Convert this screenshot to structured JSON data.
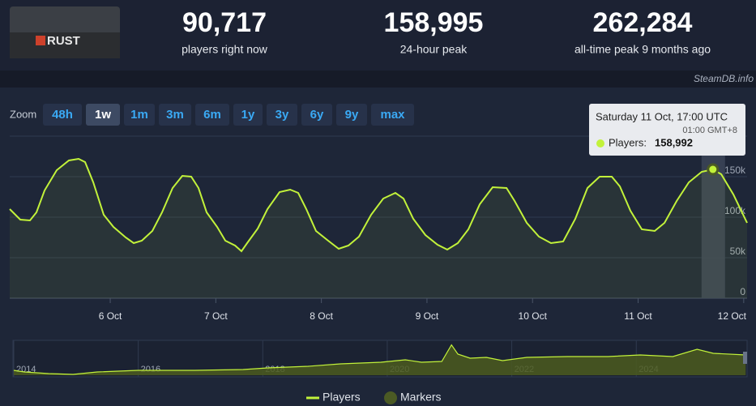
{
  "logo": "RUST",
  "stats": [
    {
      "value": "90,717",
      "label": "players right now"
    },
    {
      "value": "158,995",
      "label": "24-hour peak"
    },
    {
      "value": "262,284",
      "label": "all-time peak 9 months ago"
    }
  ],
  "credit": "SteamDB.info",
  "zoom": {
    "label": "Zoom",
    "options": [
      "48h",
      "1w",
      "1m",
      "3m",
      "6m",
      "1y",
      "3y",
      "6y",
      "9y",
      "max"
    ],
    "active": "1w"
  },
  "chart_data": [
    {
      "type": "line",
      "series": [
        {
          "name": "Players",
          "color": "#c2f23a",
          "x": [
            5.048,
            5.148,
            5.24,
            5.301,
            5.378,
            5.493,
            5.608,
            5.7,
            5.762,
            5.839,
            5.938,
            6.03,
            6.146,
            6.222,
            6.299,
            6.399,
            6.491,
            6.591,
            6.683,
            6.767,
            6.836,
            6.913,
            7.013,
            7.09,
            7.182,
            7.243,
            7.297,
            7.397,
            7.489,
            7.604,
            7.704,
            7.78,
            7.857,
            7.949,
            8.064,
            8.164,
            8.256,
            8.356,
            8.471,
            8.586,
            8.701,
            8.778,
            8.87,
            8.985,
            9.1,
            9.192,
            9.292,
            9.392,
            9.5,
            9.622,
            9.753,
            9.83,
            9.945,
            10.06,
            10.175,
            10.29,
            10.405,
            10.52,
            10.635,
            10.75,
            10.827,
            10.927,
            11.035,
            11.157,
            11.25,
            11.365,
            11.48,
            11.602,
            11.708,
            11.787,
            11.902,
            12.032
          ],
          "values": [
            110000,
            97000,
            96000,
            106000,
            133000,
            158000,
            170000,
            172000,
            168000,
            143000,
            103000,
            88000,
            75000,
            68000,
            71000,
            83000,
            106000,
            136000,
            151000,
            150000,
            136000,
            106000,
            88000,
            71000,
            65000,
            58000,
            68000,
            86000,
            110000,
            131000,
            134000,
            130000,
            110000,
            83000,
            71000,
            61000,
            65000,
            76000,
            103000,
            123000,
            130000,
            123000,
            98000,
            78000,
            66000,
            60000,
            68000,
            85000,
            116000,
            137000,
            136000,
            120000,
            93000,
            76000,
            68000,
            70000,
            98000,
            136000,
            150000,
            150000,
            138000,
            108000,
            85000,
            83000,
            93000,
            120000,
            143000,
            156000,
            158992,
            153000,
            128000,
            93000
          ]
        }
      ],
      "xlim": [
        5.048,
        12.032
      ],
      "xticks": [
        {
          "value": 6,
          "label": "6 Oct"
        },
        {
          "value": 7,
          "label": "7 Oct"
        },
        {
          "value": 8,
          "label": "8 Oct"
        },
        {
          "value": 9,
          "label": "9 Oct"
        },
        {
          "value": 10,
          "label": "10 Oct"
        },
        {
          "value": 11,
          "label": "11 Oct"
        },
        {
          "value": 12,
          "label": "12 Oct"
        }
      ],
      "ylim": [
        0,
        200000
      ],
      "yticks": [
        0,
        {
          "value": 50000,
          "label": "50k"
        },
        {
          "value": 100000,
          "label": "100k"
        },
        {
          "value": 150000,
          "label": "150k"
        }
      ],
      "grid": true,
      "tooltip": {
        "title": "Saturday 11 Oct, 17:00 UTC",
        "subtitle": "01:00 GMT+8",
        "label": "Players:",
        "x": 11.708,
        "value": 158992,
        "value_label": "158,992"
      },
      "legend": [
        {
          "name": "Players",
          "color": "#c2f23a"
        },
        {
          "name": "Markers",
          "color": "#4b5a24"
        }
      ]
    },
    {
      "type": "area",
      "series": [
        {
          "color": "#c2f23a",
          "fill": "#4b5a1e",
          "x": [
            2014.0,
            2014.169,
            2014.56,
            2014.951,
            2015.341,
            2016.0,
            2016.904,
            2017.685,
            2018.076,
            2018.727,
            2019.248,
            2019.898,
            2020.159,
            2020.289,
            2020.55,
            2020.875,
            2021.031,
            2021.135,
            2021.331,
            2021.591,
            2021.852,
            2022.242,
            2022.893,
            2023.544,
            2024.065,
            2024.586,
            2024.977,
            2025.237,
            2025.758
          ],
          "values": [
            42000,
            28000,
            14000,
            7000,
            28000,
            42000,
            42000,
            49000,
            63000,
            77000,
            98000,
            112000,
            126000,
            133000,
            112000,
            119000,
            262000,
            182000,
            147000,
            154000,
            126000,
            154000,
            161000,
            161000,
            175000,
            161000,
            224000,
            189000,
            175000
          ]
        }
      ],
      "xlim": [
        2013.935,
        2025.78
      ],
      "xticks": [
        2014,
        2016,
        2018,
        2020,
        2022,
        2024
      ],
      "ylim": [
        0,
        280000
      ]
    }
  ]
}
